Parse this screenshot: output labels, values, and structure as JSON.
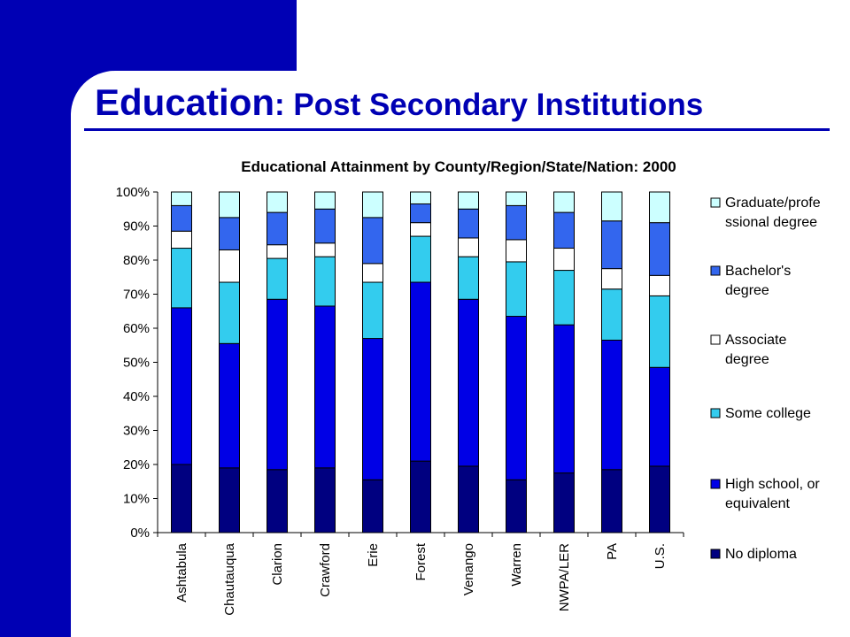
{
  "slide": {
    "title_main": "Education",
    "title_sub": ": Post Secondary Institutions"
  },
  "colors": {
    "frame": "#0000b4",
    "title": "#0000b4"
  },
  "chart_data": {
    "type": "bar",
    "stacked": true,
    "title": "Educational Attainment by County/Region/State/Nation: 2000",
    "xlabel": "",
    "ylabel": "",
    "ylim": [
      0,
      100
    ],
    "y_ticks": [
      "0%",
      "10%",
      "20%",
      "30%",
      "40%",
      "50%",
      "60%",
      "70%",
      "80%",
      "90%",
      "100%"
    ],
    "grid": false,
    "legend_position": "right",
    "categories": [
      "Ashtabula",
      "Chautauqua",
      "Clarion",
      "Crawford",
      "Erie",
      "Forest",
      "Venango",
      "Warren",
      "NWPA/LER",
      "PA",
      "U.S."
    ],
    "series": [
      {
        "name": "No diploma",
        "color": "#000080",
        "values": [
          20.0,
          19.0,
          18.5,
          19.0,
          15.5,
          21.0,
          19.5,
          15.5,
          17.5,
          18.5,
          19.5
        ]
      },
      {
        "name": "High school, or equivalent",
        "color": "#0000e6",
        "values": [
          46.0,
          36.5,
          50.0,
          47.5,
          41.5,
          52.5,
          49.0,
          48.0,
          43.5,
          38.0,
          29.0
        ]
      },
      {
        "name": "Some college",
        "color": "#33ccee",
        "values": [
          17.5,
          18.0,
          12.0,
          14.5,
          16.5,
          13.5,
          12.5,
          16.0,
          16.0,
          15.0,
          21.0
        ]
      },
      {
        "name": "Associate degree",
        "color": "#ffffff",
        "values": [
          5.0,
          9.5,
          4.0,
          4.0,
          5.5,
          4.0,
          5.5,
          6.5,
          6.5,
          6.0,
          6.0
        ]
      },
      {
        "name": "Bachelor's degree",
        "color": "#3366ee",
        "values": [
          7.5,
          9.5,
          9.5,
          10.0,
          13.5,
          5.5,
          8.5,
          10.0,
          10.5,
          14.0,
          15.5
        ]
      },
      {
        "name": "Graduate/professional degree",
        "color": "#ccffff",
        "values": [
          4.0,
          7.5,
          6.0,
          5.0,
          7.5,
          3.5,
          5.0,
          4.0,
          6.0,
          8.5,
          9.0
        ]
      }
    ],
    "legend_entries": [
      {
        "label_lines": [
          "Graduate/profe",
          "ssional degree"
        ],
        "color": "#ccffff"
      },
      {
        "label_lines": [
          "Bachelor's",
          "degree"
        ],
        "color": "#3366ee"
      },
      {
        "label_lines": [
          "Associate",
          "degree"
        ],
        "color": "#ffffff"
      },
      {
        "label_lines": [
          "Some college"
        ],
        "color": "#33ccee"
      },
      {
        "label_lines": [
          "High school, or",
          "equivalent"
        ],
        "color": "#0000e6"
      },
      {
        "label_lines": [
          "No diploma"
        ],
        "color": "#000080"
      }
    ]
  }
}
